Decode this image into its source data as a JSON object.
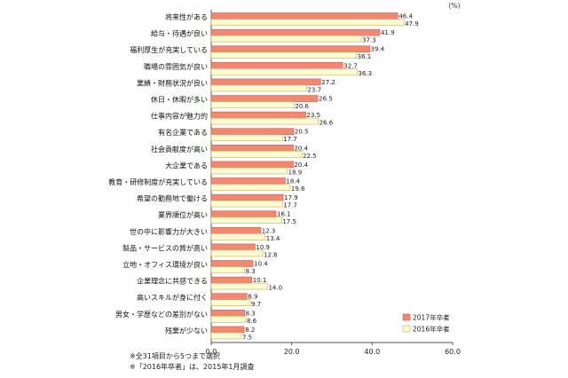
{
  "chart_data": {
    "type": "bar",
    "orientation": "horizontal",
    "unit_label": "(%)",
    "categories": [
      "将来性がある",
      "給与・待遇が良い",
      "福利厚生が充実している",
      "職場の雰囲気が良い",
      "業績・財務状況が良い",
      "休日・休暇が多い",
      "仕事内容が魅力的",
      "有名企業である",
      "社会貢献度が高い",
      "大企業である",
      "教育・研修制度が充実している",
      "希望の勤務地で働ける",
      "業界順位が高い",
      "世の中に影響力が大きい",
      "製品・サービスの質が高い",
      "立地・オフィス環境が良い",
      "企業理念に共感できる",
      "高いスキルが身に付く",
      "男女・学歴などの差別がない",
      "残業が少ない"
    ],
    "series": [
      {
        "name": "2017年卒者",
        "color": "#f4876f",
        "values": [
          46.4,
          41.9,
          39.4,
          32.7,
          27.2,
          26.5,
          23.5,
          20.5,
          20.4,
          20.4,
          18.4,
          17.9,
          16.1,
          12.3,
          10.9,
          10.4,
          10.1,
          8.9,
          8.3,
          8.2
        ]
      },
      {
        "name": "2016年卒者",
        "color": "#fdfbd2",
        "values": [
          47.9,
          37.3,
          36.1,
          36.3,
          23.7,
          20.6,
          26.6,
          17.7,
          22.5,
          18.9,
          19.6,
          17.7,
          17.5,
          13.4,
          12.8,
          8.3,
          14.0,
          9.7,
          8.6,
          7.5
        ]
      }
    ],
    "x_ticks": [
      "0.0",
      "20.0",
      "40.0",
      "60.0"
    ],
    "xlim": [
      0,
      60
    ],
    "legend_position": "bottom-right",
    "grid": false,
    "footnotes": [
      "※全31項目から5つまで選択",
      "※「2016年卒者」は、2015年1月調査"
    ]
  }
}
